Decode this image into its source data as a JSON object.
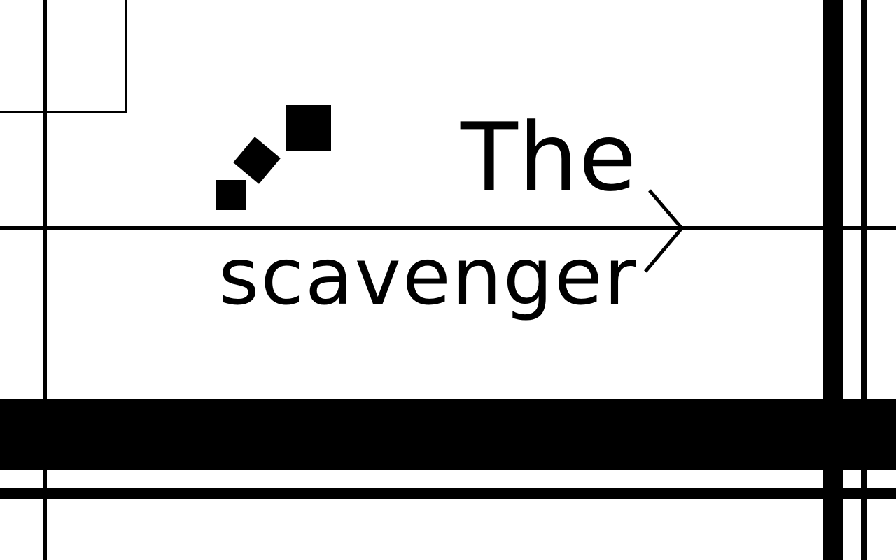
{
  "title": {
    "line1": "The",
    "line2": "scavenger"
  },
  "logo": {
    "icon": "stacked-squares-icon"
  },
  "colors": {
    "background": "#ffffff",
    "ink": "#000000"
  },
  "icons": {
    "arrow": "chevron-right-arrow-icon"
  }
}
